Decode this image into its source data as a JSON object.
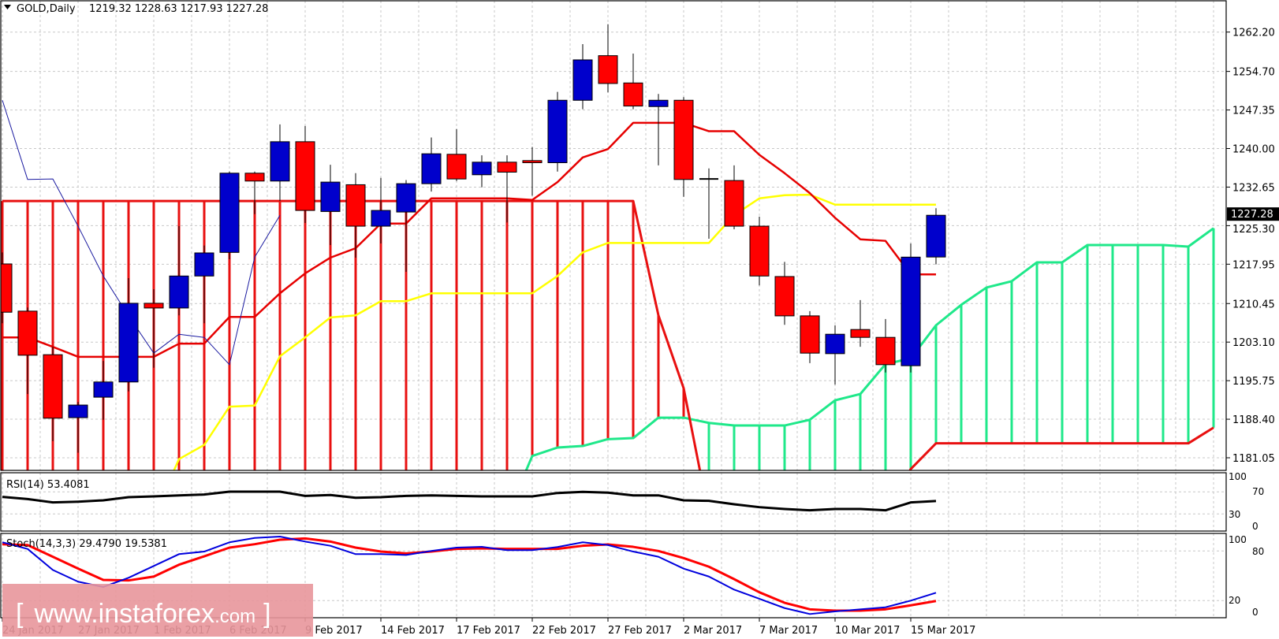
{
  "header": {
    "symbol_timeframe": "GOLD,Daily",
    "ohlc": "1219.32 1228.63 1217.93 1227.28",
    "menu_icon": "triangle-down-icon"
  },
  "price_axis": {
    "ticks": [
      "1262.20",
      "1254.70",
      "1247.35",
      "1240.00",
      "1232.65",
      "1225.30",
      "1217.95",
      "1210.45",
      "1203.10",
      "1195.75",
      "1188.40",
      "1181.05"
    ],
    "current_price": "1227.28"
  },
  "rsi": {
    "label": "RSI(14) 53.4081",
    "levels": [
      "100",
      "70",
      "30",
      "0"
    ]
  },
  "stoch": {
    "label": "Stoch(14,3,3) 29.4790 19.5381",
    "levels": [
      "100",
      "80",
      "20",
      "0"
    ]
  },
  "date_axis": {
    "labels": [
      {
        "bar": 0,
        "label": "24 Jan 2017"
      },
      {
        "bar": 3,
        "label": "27 Jan 2017"
      },
      {
        "bar": 6,
        "label": "1 Feb 2017"
      },
      {
        "bar": 9,
        "label": "6 Feb 2017"
      },
      {
        "bar": 12,
        "label": "9 Feb 2017"
      },
      {
        "bar": 15,
        "label": "14 Feb 2017"
      },
      {
        "bar": 18,
        "label": "17 Feb 2017"
      },
      {
        "bar": 21,
        "label": "22 Feb 2017"
      },
      {
        "bar": 24,
        "label": "27 Feb 2017"
      },
      {
        "bar": 27,
        "label": "2 Mar 2017"
      },
      {
        "bar": 30,
        "label": "7 Mar 2017"
      },
      {
        "bar": 33,
        "label": "10 Mar 2017"
      },
      {
        "bar": 36,
        "label": "15 Mar 2017"
      }
    ]
  },
  "watermark": {
    "open": "[",
    "site": "www.instaforex",
    "tld": ".com",
    "close": "]"
  },
  "colors": {
    "bull_candle": "#0000cc",
    "bear_candle": "#ff0000",
    "tenkan": "#e60000",
    "kijun": "#ffff00",
    "chikou": "#1a1aa0",
    "senkou_a": "#1fe88a",
    "senkou_b": "#e81010",
    "rsi": "#000000",
    "stoch_k": "#0000dd",
    "stoch_d": "#ff0000",
    "watermark_bg": "#e8969b"
  },
  "chart_data": [
    {
      "type": "candlestick",
      "ylim": [
        1181.05,
        1262.2
      ],
      "grid": true,
      "candles_ohlc": [
        [
          1218.0,
          1220.2,
          1206.7,
          1208.8
        ],
        [
          1209.0,
          1209.7,
          1193.2,
          1200.6
        ],
        [
          1200.7,
          1202.2,
          1184.2,
          1188.6
        ],
        [
          1188.7,
          1191.7,
          1182.0,
          1191.1
        ],
        [
          1192.6,
          1199.5,
          1188.3,
          1195.5
        ],
        [
          1195.5,
          1215.3,
          1193.7,
          1210.5
        ],
        [
          1210.5,
          1213.2,
          1198.2,
          1209.6
        ],
        [
          1209.6,
          1225.2,
          1208.2,
          1215.7
        ],
        [
          1215.7,
          1221.5,
          1206.7,
          1220.1
        ],
        [
          1220.2,
          1235.6,
          1218.9,
          1235.3
        ],
        [
          1235.3,
          1235.6,
          1227.5,
          1233.8
        ],
        [
          1233.8,
          1244.6,
          1230.0,
          1241.3
        ],
        [
          1241.3,
          1244.3,
          1225.8,
          1228.2
        ],
        [
          1228.0,
          1236.9,
          1221.6,
          1233.6
        ],
        [
          1233.1,
          1235.3,
          1219.2,
          1225.2
        ],
        [
          1225.2,
          1234.4,
          1221.9,
          1228.2
        ],
        [
          1227.9,
          1234.0,
          1216.5,
          1233.3
        ],
        [
          1233.3,
          1242.1,
          1231.8,
          1239.0
        ],
        [
          1238.9,
          1243.7,
          1233.8,
          1234.2
        ],
        [
          1235.0,
          1238.7,
          1232.6,
          1237.4
        ],
        [
          1237.4,
          1238.7,
          1225.9,
          1235.5
        ],
        [
          1237.7,
          1240.3,
          1231.0,
          1237.3
        ],
        [
          1237.3,
          1250.8,
          1235.6,
          1249.2
        ],
        [
          1249.2,
          1259.9,
          1247.5,
          1256.9
        ],
        [
          1257.7,
          1263.7,
          1250.7,
          1252.4
        ],
        [
          1252.5,
          1258.1,
          1247.5,
          1248.1
        ],
        [
          1248.0,
          1250.4,
          1236.8,
          1249.2
        ],
        [
          1249.2,
          1249.8,
          1230.8,
          1234.1
        ],
        [
          1234.2,
          1236.2,
          1222.8,
          1234.1
        ],
        [
          1233.9,
          1236.8,
          1224.6,
          1225.2
        ],
        [
          1225.2,
          1227.0,
          1213.9,
          1215.7
        ],
        [
          1215.6,
          1218.4,
          1206.4,
          1208.1
        ],
        [
          1208.1,
          1209.0,
          1199.1,
          1201.0
        ],
        [
          1200.9,
          1206.3,
          1195.0,
          1204.6
        ],
        [
          1205.5,
          1211.1,
          1202.2,
          1204.0
        ],
        [
          1204.0,
          1207.5,
          1197.3,
          1198.8
        ],
        [
          1198.6,
          1221.9,
          1197.3,
          1219.3
        ],
        [
          1219.32,
          1228.63,
          1217.93,
          1227.28
        ]
      ],
      "tenkan": [
        1204.0,
        1204.0,
        1202.2,
        1200.3,
        1200.3,
        1200.3,
        1200.3,
        1202.8,
        1202.8,
        1207.9,
        1207.9,
        1212.4,
        1216.2,
        1219.2,
        1221.0,
        1225.7,
        1225.7,
        1230.5,
        1230.5,
        1230.5,
        1230.5,
        1230.2,
        1233.6,
        1238.3,
        1239.9,
        1244.9,
        1244.9,
        1244.9,
        1243.3,
        1243.3,
        1238.8,
        1235.3,
        1231.5,
        1226.8,
        1222.7,
        1222.4,
        1216.0,
        1216.0
      ],
      "kijun": [
        null,
        null,
        null,
        null,
        null,
        null,
        null,
        1180.8,
        1183.5,
        1190.8,
        1191.0,
        1200.4,
        1204.0,
        1207.8,
        1208.2,
        1210.9,
        1210.9,
        1212.4,
        1212.4,
        1212.4,
        1212.4,
        1212.4,
        1215.7,
        1220.2,
        1222.0,
        1222.0,
        1222.0,
        1222.0,
        1222.0,
        1227.3,
        1230.5,
        1231.1,
        1231.2,
        1229.3,
        1229.3,
        1229.3,
        1229.3,
        1229.3
      ],
      "chikou": [
        1249.2,
        1234.1,
        1234.2,
        1225.2,
        1215.7,
        1208.1,
        1201.0,
        1204.6,
        1204.0,
        1198.8,
        1219.3,
        1227.28
      ],
      "senkou_a": [
        null,
        null,
        null,
        null,
        null,
        null,
        null,
        null,
        null,
        null,
        null,
        null,
        null,
        null,
        null,
        null,
        null,
        null,
        null,
        null,
        null,
        1181.4,
        1183.0,
        1183.3,
        1184.6,
        1184.8,
        1188.7,
        1188.7,
        1187.7,
        1187.2,
        1187.2,
        1187.2,
        1188.3,
        1192.0,
        1193.2,
        1198.9,
        1200.0,
        1206.3,
        1210.2,
        1213.5,
        1214.7,
        1218.3,
        1218.3,
        1221.6,
        1221.6,
        1221.6,
        1221.6,
        1221.3,
        1224.8
      ],
      "senkou_b": [
        1230.0,
        1230.0,
        1230.0,
        1230.0,
        1230.0,
        1230.0,
        1230.0,
        1230.0,
        1230.0,
        1230.0,
        1230.0,
        1230.0,
        1230.0,
        1230.0,
        1230.0,
        1230.0,
        1230.0,
        1230.0,
        1230.0,
        1230.0,
        1230.0,
        1230.0,
        1230.0,
        1230.0,
        1230.0,
        1230.0,
        1208.2,
        1194.3,
        null,
        null,
        null,
        null,
        null,
        null,
        null,
        null,
        1178.9,
        1183.8,
        1183.8,
        1183.8,
        1183.8,
        1183.8,
        1183.8,
        1183.8,
        1183.8,
        1183.8,
        1183.8,
        1183.8,
        1186.8
      ]
    },
    {
      "type": "line",
      "title": "RSI(14) 53.4081",
      "ylim": [
        0,
        100
      ],
      "levels": [
        70,
        30
      ],
      "values": [
        60.9,
        57.1,
        50.9,
        52.3,
        54.7,
        60.4,
        61.9,
        63.7,
        65.2,
        70.4,
        70.4,
        70.4,
        62.8,
        64.3,
        59.4,
        60.4,
        62.8,
        63.7,
        62.8,
        61.9,
        61.9,
        61.9,
        68.0,
        70.0,
        68.6,
        63.7,
        63.7,
        54.7,
        53.8,
        47.6,
        42.3,
        39.0,
        36.6,
        39.0,
        39.0,
        36.6,
        50.9,
        53.41
      ]
    },
    {
      "type": "line",
      "title": "Stoch(14,3,3) 29.4790 19.5381",
      "ylim": [
        0,
        100
      ],
      "levels": [
        80,
        20
      ],
      "series": [
        {
          "values": [
            90.5,
            82.5,
            57.1,
            42.9,
            36.5,
            47.6,
            61.9,
            76.2,
            79.3,
            90.5,
            95.8,
            97.4,
            91.4,
            86.3,
            76.2,
            76.2,
            75.2,
            80.0,
            84.1,
            85.0,
            81.0,
            81.0,
            84.8,
            90.5,
            87.2,
            79.3,
            73.0,
            58.7,
            49.1,
            33.3,
            22.2,
            11.0,
            3.8,
            7.0,
            9.5,
            12.0,
            20.0,
            29.479
          ]
        },
        {
          "values": [
            88.2,
            87.2,
            73.0,
            58.7,
            45.0,
            44.4,
            49.1,
            63.4,
            73.6,
            84.1,
            88.2,
            93.6,
            95.2,
            91.4,
            84.1,
            79.3,
            77.1,
            79.3,
            82.5,
            83.1,
            82.5,
            82.5,
            82.5,
            86.3,
            87.9,
            85.0,
            80.0,
            71.4,
            61.0,
            46.0,
            30.1,
            17.4,
            9.5,
            7.9,
            7.9,
            9.5,
            14.3,
            19.5381
          ]
        }
      ]
    }
  ]
}
